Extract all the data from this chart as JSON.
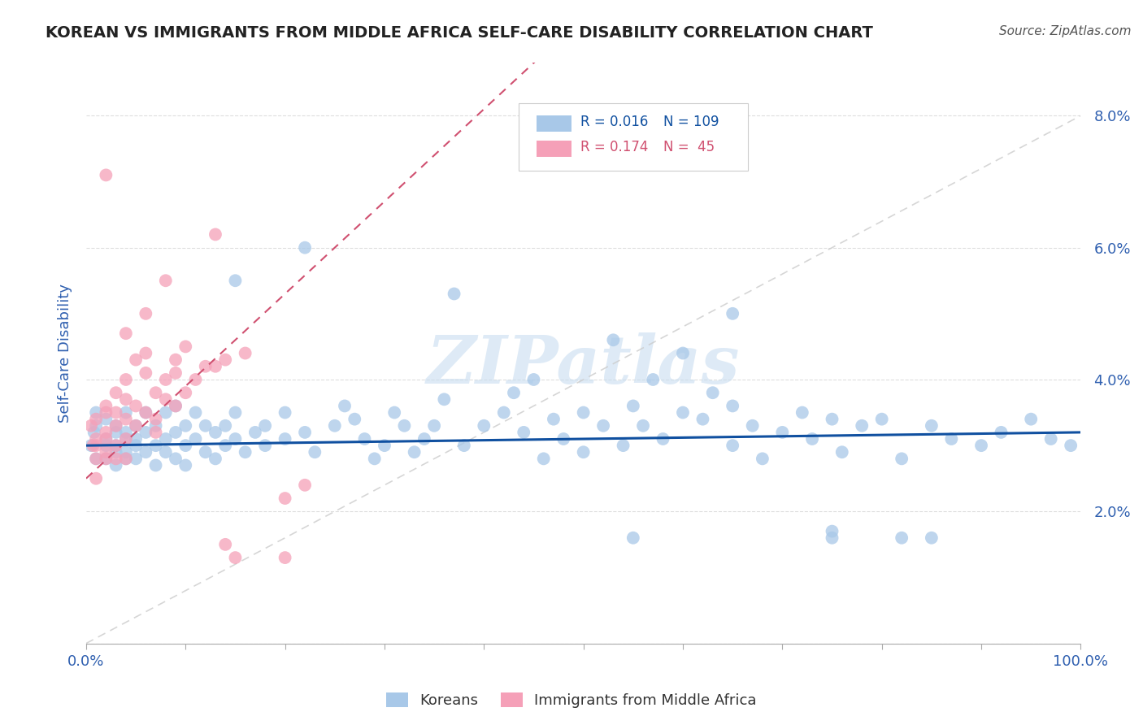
{
  "title": "KOREAN VS IMMIGRANTS FROM MIDDLE AFRICA SELF-CARE DISABILITY CORRELATION CHART",
  "source": "Source: ZipAtlas.com",
  "ylabel": "Self-Care Disability",
  "xlim": [
    0,
    1.0
  ],
  "ylim": [
    0,
    0.088
  ],
  "yticks": [
    0.0,
    0.02,
    0.04,
    0.06,
    0.08
  ],
  "ytick_labels": [
    "",
    "2.0%",
    "4.0%",
    "6.0%",
    "8.0%"
  ],
  "xtick_labels": [
    "0.0%",
    "100.0%"
  ],
  "korean_color": "#a8c8e8",
  "immigrant_color": "#f5a0b8",
  "korean_trend_color": "#1050a0",
  "immigrant_trend_color": "#d05070",
  "watermark_text": "ZIPatlas",
  "watermark_color": "#c8ddf0",
  "title_color": "#222222",
  "source_color": "#555555",
  "axis_label_color": "#3060b0",
  "tick_label_color": "#3060b0",
  "grid_color": "#dddddd",
  "background_color": "#ffffff",
  "legend_R1": "R = 0.016",
  "legend_N1": "N = 109",
  "legend_R2": "R = 0.174",
  "legend_N2": "N =  45",
  "bottom_legend_1": "Koreans",
  "bottom_legend_2": "Immigrants from Middle Africa",
  "korean_x": [
    0.005,
    0.008,
    0.01,
    0.01,
    0.01,
    0.02,
    0.02,
    0.02,
    0.02,
    0.03,
    0.03,
    0.03,
    0.03,
    0.03,
    0.04,
    0.04,
    0.04,
    0.04,
    0.04,
    0.05,
    0.05,
    0.05,
    0.05,
    0.06,
    0.06,
    0.06,
    0.07,
    0.07,
    0.07,
    0.08,
    0.08,
    0.08,
    0.09,
    0.09,
    0.09,
    0.1,
    0.1,
    0.1,
    0.11,
    0.11,
    0.12,
    0.12,
    0.13,
    0.13,
    0.14,
    0.14,
    0.15,
    0.15,
    0.16,
    0.17,
    0.18,
    0.18,
    0.2,
    0.2,
    0.22,
    0.23,
    0.25,
    0.26,
    0.27,
    0.28,
    0.29,
    0.3,
    0.31,
    0.32,
    0.33,
    0.34,
    0.35,
    0.36,
    0.38,
    0.4,
    0.42,
    0.43,
    0.44,
    0.45,
    0.46,
    0.47,
    0.48,
    0.5,
    0.5,
    0.52,
    0.53,
    0.54,
    0.55,
    0.56,
    0.57,
    0.58,
    0.6,
    0.6,
    0.62,
    0.63,
    0.65,
    0.65,
    0.67,
    0.68,
    0.7,
    0.72,
    0.73,
    0.75,
    0.76,
    0.78,
    0.8,
    0.82,
    0.85,
    0.87,
    0.9,
    0.92,
    0.95,
    0.97,
    0.99
  ],
  "korean_y": [
    0.03,
    0.032,
    0.028,
    0.033,
    0.035,
    0.03,
    0.031,
    0.028,
    0.034,
    0.029,
    0.032,
    0.03,
    0.027,
    0.033,
    0.031,
    0.029,
    0.032,
    0.028,
    0.035,
    0.03,
    0.033,
    0.028,
    0.031,
    0.032,
    0.029,
    0.035,
    0.03,
    0.033,
    0.027,
    0.031,
    0.029,
    0.035,
    0.028,
    0.032,
    0.036,
    0.03,
    0.033,
    0.027,
    0.031,
    0.035,
    0.029,
    0.033,
    0.028,
    0.032,
    0.03,
    0.033,
    0.031,
    0.035,
    0.029,
    0.032,
    0.03,
    0.033,
    0.031,
    0.035,
    0.032,
    0.029,
    0.033,
    0.036,
    0.034,
    0.031,
    0.028,
    0.03,
    0.035,
    0.033,
    0.029,
    0.031,
    0.033,
    0.037,
    0.03,
    0.033,
    0.035,
    0.038,
    0.032,
    0.04,
    0.028,
    0.034,
    0.031,
    0.035,
    0.029,
    0.033,
    0.046,
    0.03,
    0.036,
    0.033,
    0.04,
    0.031,
    0.035,
    0.044,
    0.034,
    0.038,
    0.036,
    0.03,
    0.033,
    0.028,
    0.032,
    0.035,
    0.031,
    0.034,
    0.029,
    0.033,
    0.034,
    0.028,
    0.033,
    0.031,
    0.03,
    0.032,
    0.034,
    0.031,
    0.03
  ],
  "korean_outliers_x": [
    0.37,
    0.65,
    0.75,
    0.75,
    0.82,
    0.85,
    0.15,
    0.22,
    0.55
  ],
  "korean_outliers_y": [
    0.053,
    0.05,
    0.016,
    0.017,
    0.016,
    0.016,
    0.055,
    0.06,
    0.016
  ],
  "immigrant_x": [
    0.005,
    0.007,
    0.01,
    0.01,
    0.01,
    0.01,
    0.01,
    0.02,
    0.02,
    0.02,
    0.02,
    0.02,
    0.02,
    0.03,
    0.03,
    0.03,
    0.03,
    0.03,
    0.04,
    0.04,
    0.04,
    0.04,
    0.04,
    0.05,
    0.05,
    0.05,
    0.06,
    0.06,
    0.06,
    0.07,
    0.07,
    0.07,
    0.08,
    0.08,
    0.09,
    0.09,
    0.1,
    0.1,
    0.11,
    0.12,
    0.13,
    0.14,
    0.16,
    0.2,
    0.22
  ],
  "immigrant_y": [
    0.033,
    0.03,
    0.025,
    0.028,
    0.031,
    0.034,
    0.03,
    0.029,
    0.032,
    0.035,
    0.028,
    0.031,
    0.036,
    0.03,
    0.033,
    0.028,
    0.038,
    0.035,
    0.031,
    0.034,
    0.04,
    0.037,
    0.028,
    0.033,
    0.043,
    0.036,
    0.035,
    0.041,
    0.05,
    0.034,
    0.038,
    0.032,
    0.037,
    0.055,
    0.036,
    0.041,
    0.038,
    0.045,
    0.04,
    0.042,
    0.062,
    0.043,
    0.044,
    0.022,
    0.024
  ],
  "immigrant_outliers_x": [
    0.02,
    0.04,
    0.06,
    0.08,
    0.09,
    0.13,
    0.14,
    0.15,
    0.2
  ],
  "immigrant_outliers_y": [
    0.071,
    0.047,
    0.044,
    0.04,
    0.043,
    0.042,
    0.015,
    0.013,
    0.013
  ]
}
